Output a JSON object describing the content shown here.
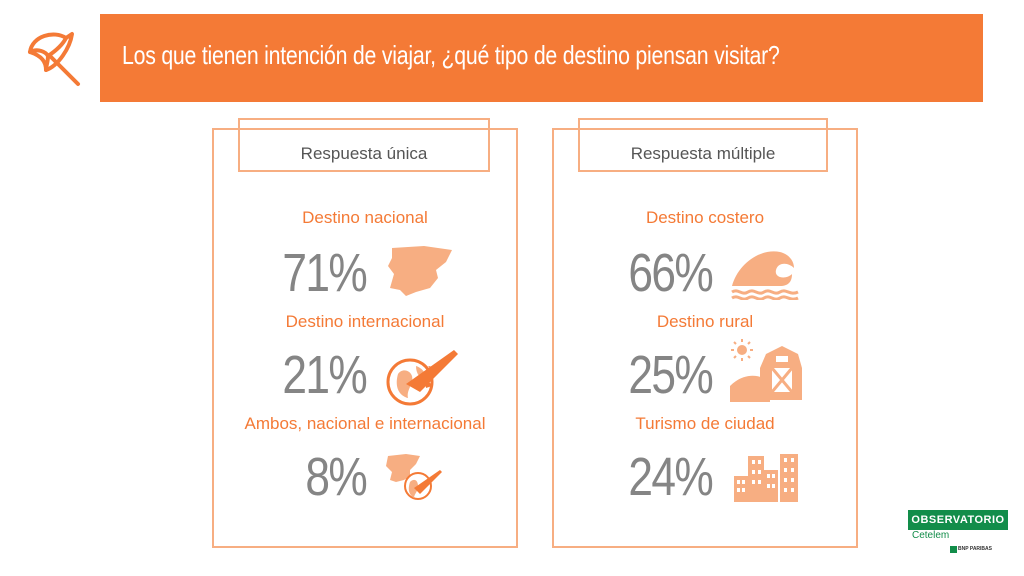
{
  "header": {
    "title": "Los que tienen intención de viajar, ¿qué tipo de destino piensan visitar?",
    "icon": "umbrella-icon",
    "color": "#f47a36"
  },
  "panels": [
    {
      "label": "Respuesta única",
      "items": [
        {
          "label": "Destino nacional",
          "percent": "71%",
          "icon": "spain-map-icon"
        },
        {
          "label": "Destino internacional",
          "percent": "21%",
          "icon": "globe-plane-icon"
        },
        {
          "label": "Ambos, nacional e internacional",
          "percent": "8%",
          "icon": "spain-map-and-globe-icon"
        }
      ]
    },
    {
      "label": "Respuesta múltiple",
      "items": [
        {
          "label": "Destino costero",
          "percent": "66%",
          "icon": "wave-icon"
        },
        {
          "label": "Destino rural",
          "percent": "25%",
          "icon": "barn-sun-icon"
        },
        {
          "label": "Turismo de ciudad",
          "percent": "24%",
          "icon": "city-buildings-icon"
        }
      ]
    }
  ],
  "logo": {
    "name": "OBSERVATORIO",
    "sub": "Cetelem",
    "bank": "BNP PARIBAS",
    "color": "#128d4a"
  },
  "colors": {
    "accent": "#f47a36",
    "accent_light": "#f7ae82",
    "percent_gray": "#858585"
  }
}
